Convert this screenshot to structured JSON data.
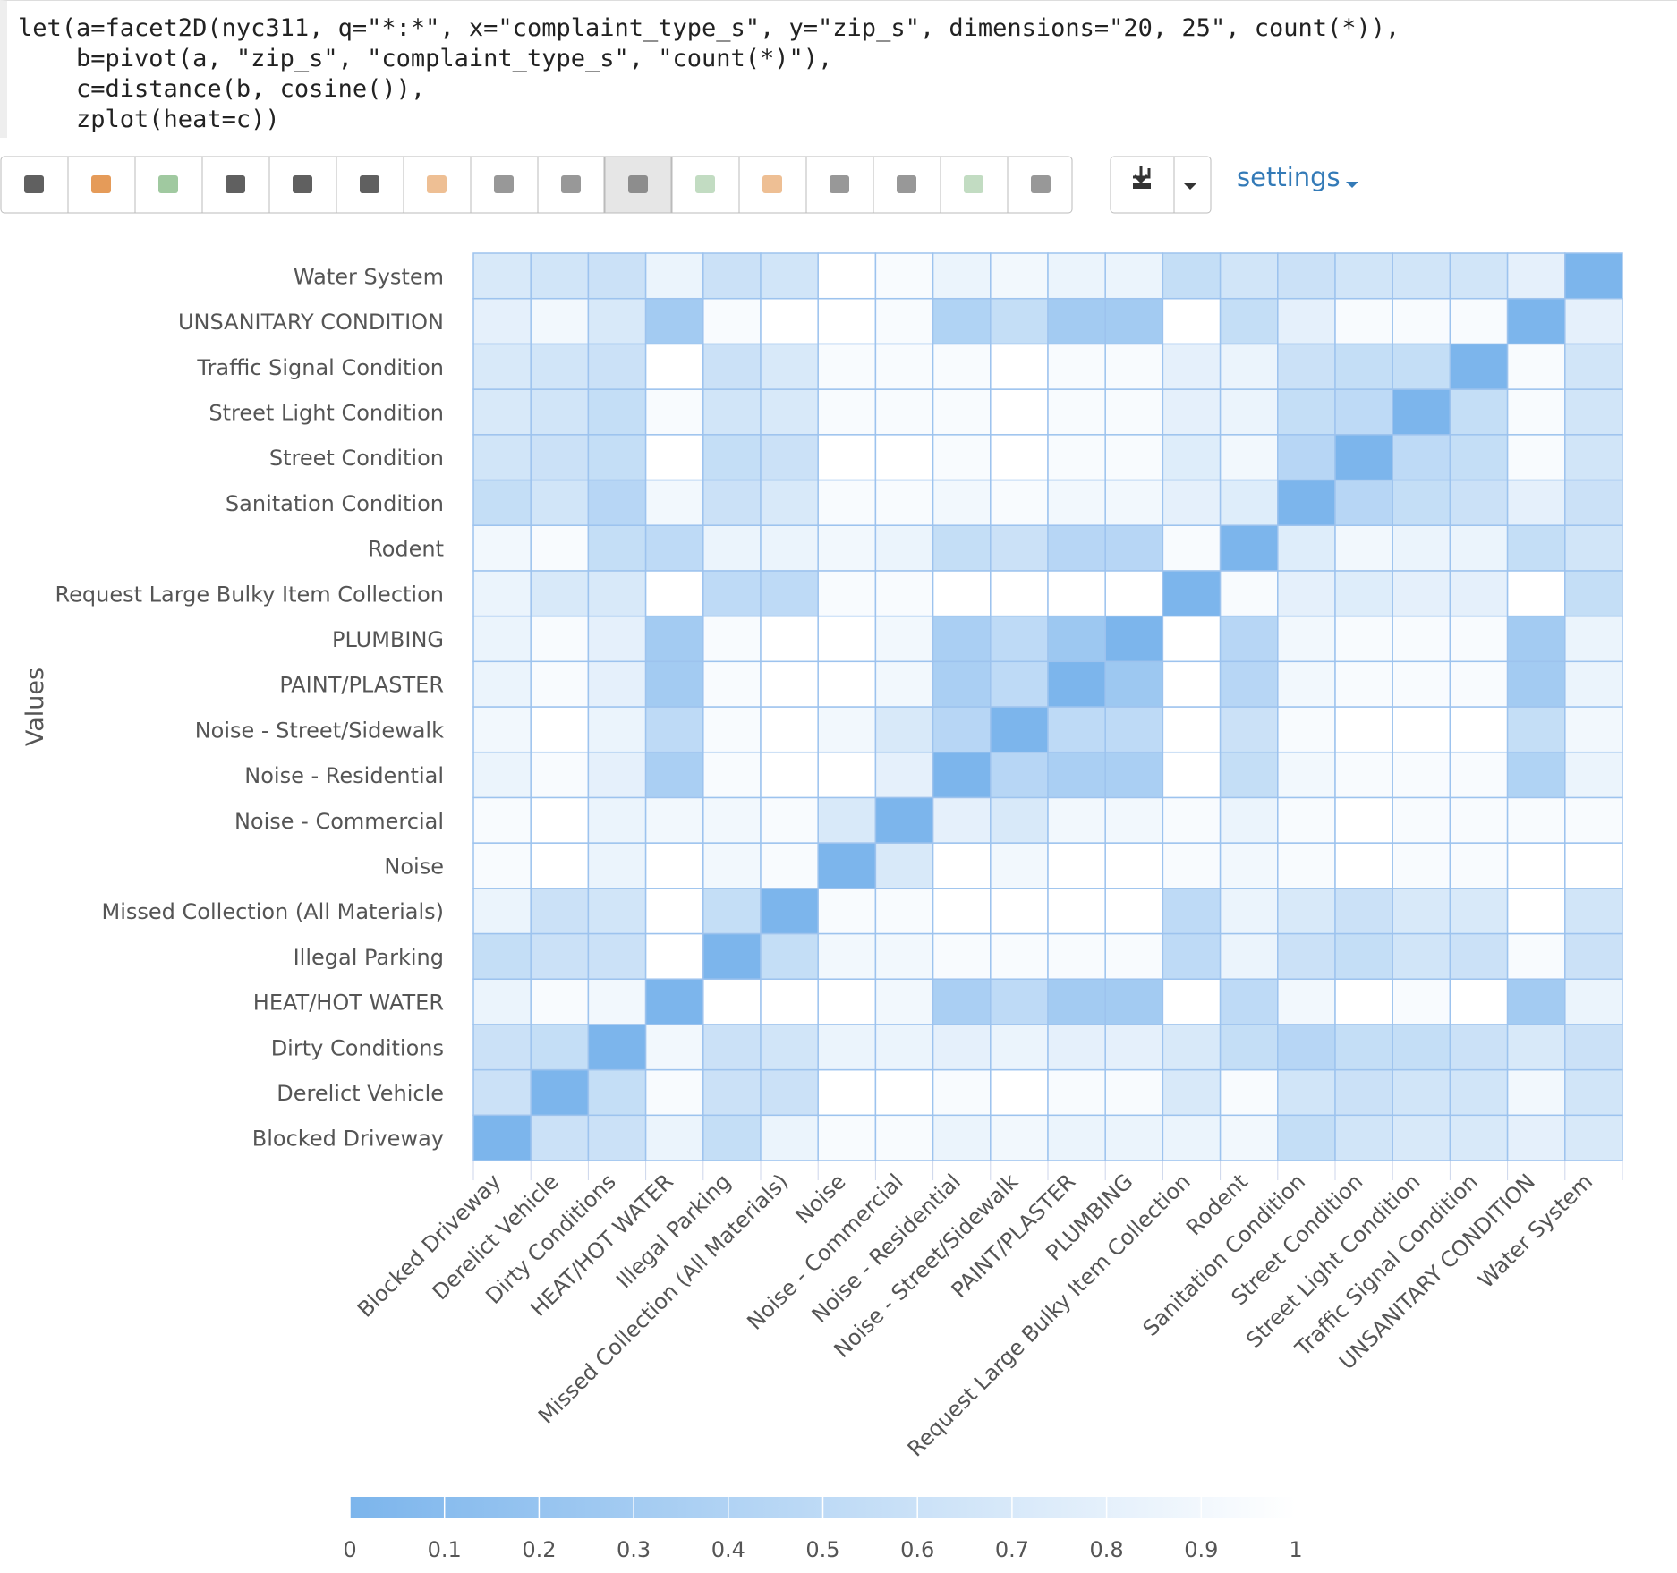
{
  "code": [
    "let(a=facet2D(nyc311, q=\"*:*\", x=\"complaint_type_s\", y=\"zip_s\", dimensions=\"20, 25\", count(*)),",
    "    b=pivot(a, \"zip_s\", \"complaint_type_s\", \"count(*)\"),",
    "    c=distance(b, cosine()),",
    "    zplot(heat=c))"
  ],
  "toolbar": {
    "settings": "settings"
  },
  "chart_data": {
    "type": "heatmap",
    "y_label": "Values",
    "x_categories": [
      "Blocked Driveway",
      "Derelict Vehicle",
      "Dirty Conditions",
      "HEAT/HOT WATER",
      "Illegal Parking",
      "Missed Collection (All Materials)",
      "Noise",
      "Noise - Commercial",
      "Noise - Residential",
      "Noise - Street/Sidewalk",
      "PAINT/PLASTER",
      "PLUMBING",
      "Request Large Bulky Item Collection",
      "Rodent",
      "Sanitation Condition",
      "Street Condition",
      "Street Light Condition",
      "Traffic Signal Condition",
      "UNSANITARY CONDITION",
      "Water System"
    ],
    "y_categories": [
      "Blocked Driveway",
      "Derelict Vehicle",
      "Dirty Conditions",
      "HEAT/HOT WATER",
      "Illegal Parking",
      "Missed Collection (All Materials)",
      "Noise",
      "Noise - Commercial",
      "Noise - Residential",
      "Noise - Street/Sidewalk",
      "PAINT/PLASTER",
      "PLUMBING",
      "Request Large Bulky Item Collection",
      "Rodent",
      "Sanitation Condition",
      "Street Condition",
      "Street Light Condition",
      "Traffic Signal Condition",
      "UNSANITARY CONDITION",
      "Water System"
    ],
    "values": [
      [
        0,
        0.6,
        0.6,
        0.85,
        0.55,
        0.85,
        0.95,
        0.95,
        0.85,
        0.9,
        0.85,
        0.85,
        0.85,
        0.9,
        0.55,
        0.65,
        0.7,
        0.7,
        0.8,
        0.7
      ],
      [
        0.6,
        0,
        0.55,
        0.95,
        0.6,
        0.6,
        1,
        1,
        0.95,
        1,
        0.95,
        0.95,
        0.7,
        0.95,
        0.65,
        0.6,
        0.65,
        0.65,
        0.9,
        0.65
      ],
      [
        0.6,
        0.55,
        0,
        0.9,
        0.6,
        0.65,
        0.85,
        0.85,
        0.8,
        0.85,
        0.8,
        0.8,
        0.7,
        0.55,
        0.45,
        0.55,
        0.55,
        0.6,
        0.7,
        0.6
      ],
      [
        0.85,
        0.95,
        0.9,
        0,
        1,
        1,
        1,
        0.9,
        0.35,
        0.5,
        0.3,
        0.3,
        1,
        0.5,
        0.9,
        1,
        0.95,
        1,
        0.3,
        0.85
      ],
      [
        0.55,
        0.6,
        0.6,
        1,
        0,
        0.55,
        0.9,
        0.9,
        0.95,
        0.95,
        0.95,
        0.95,
        0.5,
        0.85,
        0.6,
        0.55,
        0.65,
        0.6,
        0.95,
        0.6
      ],
      [
        0.85,
        0.6,
        0.65,
        1,
        0.55,
        0,
        0.95,
        0.95,
        1,
        1,
        1,
        1,
        0.5,
        0.85,
        0.7,
        0.6,
        0.7,
        0.7,
        1,
        0.65
      ],
      [
        0.95,
        1,
        0.85,
        1,
        0.9,
        0.95,
        0,
        0.7,
        1,
        0.9,
        1,
        1,
        0.95,
        0.9,
        0.95,
        1,
        0.95,
        0.95,
        1,
        1
      ],
      [
        0.95,
        1,
        0.85,
        0.9,
        0.9,
        0.95,
        0.7,
        0,
        0.8,
        0.7,
        0.9,
        0.9,
        0.95,
        0.85,
        0.95,
        1,
        0.95,
        0.95,
        0.95,
        0.95
      ],
      [
        0.85,
        0.95,
        0.8,
        0.35,
        0.95,
        1,
        1,
        0.8,
        0,
        0.45,
        0.35,
        0.35,
        1,
        0.55,
        0.9,
        0.95,
        0.95,
        0.95,
        0.4,
        0.85
      ],
      [
        0.9,
        1,
        0.85,
        0.5,
        0.95,
        1,
        0.9,
        0.7,
        0.45,
        0,
        0.5,
        0.5,
        1,
        0.6,
        0.95,
        1,
        1,
        1,
        0.55,
        0.9
      ],
      [
        0.85,
        0.95,
        0.8,
        0.3,
        0.95,
        1,
        1,
        0.9,
        0.35,
        0.5,
        0,
        0.25,
        1,
        0.45,
        0.9,
        0.95,
        0.95,
        0.95,
        0.3,
        0.85
      ],
      [
        0.85,
        0.95,
        0.8,
        0.3,
        0.95,
        1,
        1,
        0.9,
        0.35,
        0.5,
        0.25,
        0,
        1,
        0.45,
        0.9,
        0.95,
        0.95,
        0.95,
        0.3,
        0.85
      ],
      [
        0.85,
        0.7,
        0.7,
        1,
        0.5,
        0.5,
        0.95,
        0.95,
        1,
        1,
        1,
        1,
        0,
        0.95,
        0.8,
        0.75,
        0.8,
        0.8,
        1,
        0.55
      ],
      [
        0.9,
        0.95,
        0.55,
        0.5,
        0.85,
        0.85,
        0.9,
        0.85,
        0.55,
        0.6,
        0.45,
        0.45,
        0.95,
        0,
        0.75,
        0.9,
        0.85,
        0.85,
        0.55,
        0.65
      ],
      [
        0.55,
        0.65,
        0.45,
        0.9,
        0.6,
        0.7,
        0.95,
        0.95,
        0.9,
        0.95,
        0.9,
        0.9,
        0.8,
        0.75,
        0,
        0.45,
        0.55,
        0.6,
        0.8,
        0.6
      ],
      [
        0.65,
        0.6,
        0.55,
        1,
        0.55,
        0.6,
        1,
        1,
        0.95,
        1,
        0.95,
        0.95,
        0.75,
        0.9,
        0.45,
        0,
        0.5,
        0.55,
        0.95,
        0.65
      ],
      [
        0.7,
        0.65,
        0.55,
        0.95,
        0.65,
        0.7,
        0.95,
        0.95,
        0.95,
        1,
        0.95,
        0.95,
        0.8,
        0.85,
        0.55,
        0.5,
        0,
        0.55,
        0.95,
        0.65
      ],
      [
        0.7,
        0.65,
        0.6,
        1,
        0.6,
        0.7,
        0.95,
        0.95,
        0.95,
        1,
        0.95,
        0.95,
        0.8,
        0.85,
        0.6,
        0.55,
        0.55,
        0,
        0.95,
        0.65
      ],
      [
        0.8,
        0.9,
        0.7,
        0.3,
        0.95,
        1,
        1,
        0.95,
        0.4,
        0.55,
        0.3,
        0.3,
        1,
        0.55,
        0.8,
        0.95,
        0.95,
        0.95,
        0,
        0.8
      ],
      [
        0.7,
        0.65,
        0.6,
        0.85,
        0.6,
        0.65,
        1,
        0.95,
        0.85,
        0.9,
        0.85,
        0.85,
        0.55,
        0.65,
        0.6,
        0.65,
        0.65,
        0.65,
        0.8,
        0
      ]
    ],
    "zlim": [
      0,
      1
    ],
    "zticks": [
      0,
      0.1,
      0.2,
      0.3,
      0.4,
      0.5,
      0.6,
      0.7,
      0.8,
      0.9,
      1
    ],
    "colors": [
      "#7cb5ec",
      "#ffffff"
    ]
  }
}
